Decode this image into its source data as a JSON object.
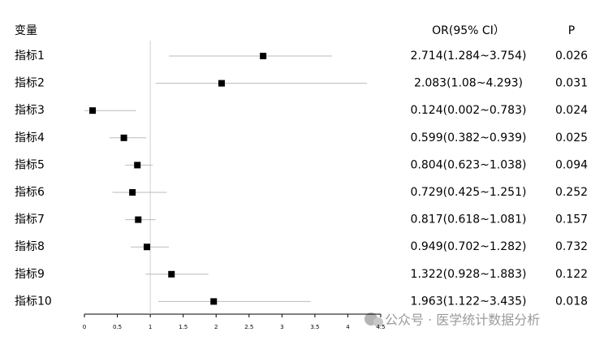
{
  "chart_data": {
    "type": "forest",
    "headers": {
      "variable": "变量",
      "ci": "OR(95% CI）",
      "p": "P"
    },
    "categories": [
      "指标1",
      "指标2",
      "指标3",
      "指标4",
      "指标5",
      "指标6",
      "指标7",
      "指标8",
      "指标9",
      "指标10"
    ],
    "values": [
      2.714,
      2.083,
      0.124,
      0.599,
      0.804,
      0.729,
      0.817,
      0.949,
      1.322,
      1.963
    ],
    "low": [
      1.284,
      1.08,
      0.002,
      0.382,
      0.623,
      0.425,
      0.618,
      0.702,
      0.928,
      1.122
    ],
    "high": [
      3.754,
      4.293,
      0.783,
      0.939,
      1.038,
      1.251,
      1.081,
      1.282,
      1.883,
      3.435
    ],
    "value_labels": [
      "2.714(1.284~3.754)",
      "2.083(1.08~4.293)",
      "0.124(0.002~0.783)",
      "0.599(0.382~0.939)",
      "0.804(0.623~1.038)",
      "0.729(0.425~1.251)",
      "0.817(0.618~1.081)",
      "0.949(0.702~1.282)",
      "1.322(0.928~1.883)",
      "1.963(1.122~3.435)"
    ],
    "p_values": [
      0.026,
      0.031,
      0.024,
      0.025,
      0.094,
      0.252,
      0.157,
      0.732,
      0.122,
      0.018
    ],
    "reference": 1,
    "xlim": [
      0,
      4.5
    ],
    "xticks": [
      0,
      0.5,
      1,
      1.5,
      2,
      2.5,
      3,
      3.5,
      4,
      4.5
    ],
    "color": "#000000",
    "ci_color": "#bbbbbb",
    "watermark": "公众号 · 医学统计数据分析"
  }
}
